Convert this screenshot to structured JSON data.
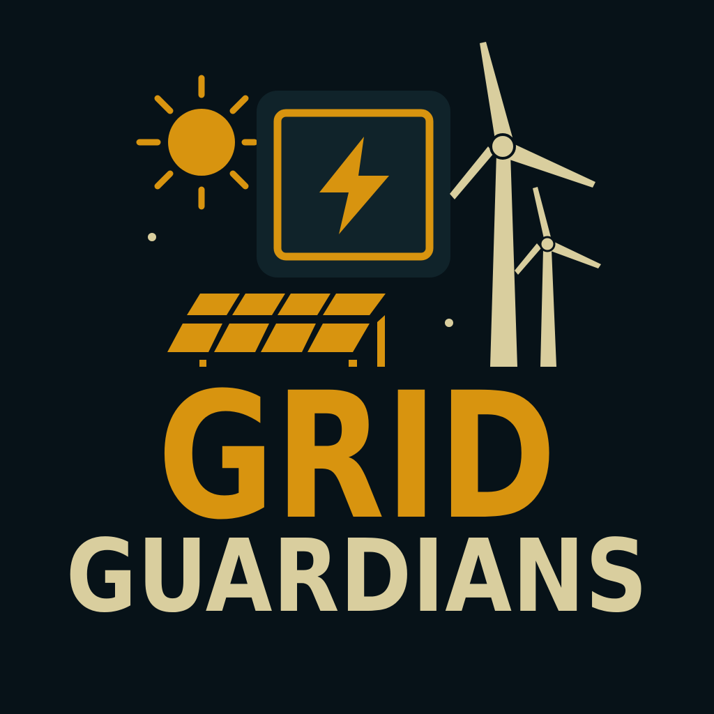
{
  "logo": {
    "title": "GRID",
    "subtitle": "GUARDIANS",
    "colors": {
      "background": "#071218",
      "accent": "#D8940F",
      "cream": "#D9CE9E",
      "panel_fill": "#10232A"
    },
    "icons": [
      "sun-icon",
      "battery-lightning-icon",
      "solar-panel-icon",
      "wind-turbine-icon"
    ]
  }
}
